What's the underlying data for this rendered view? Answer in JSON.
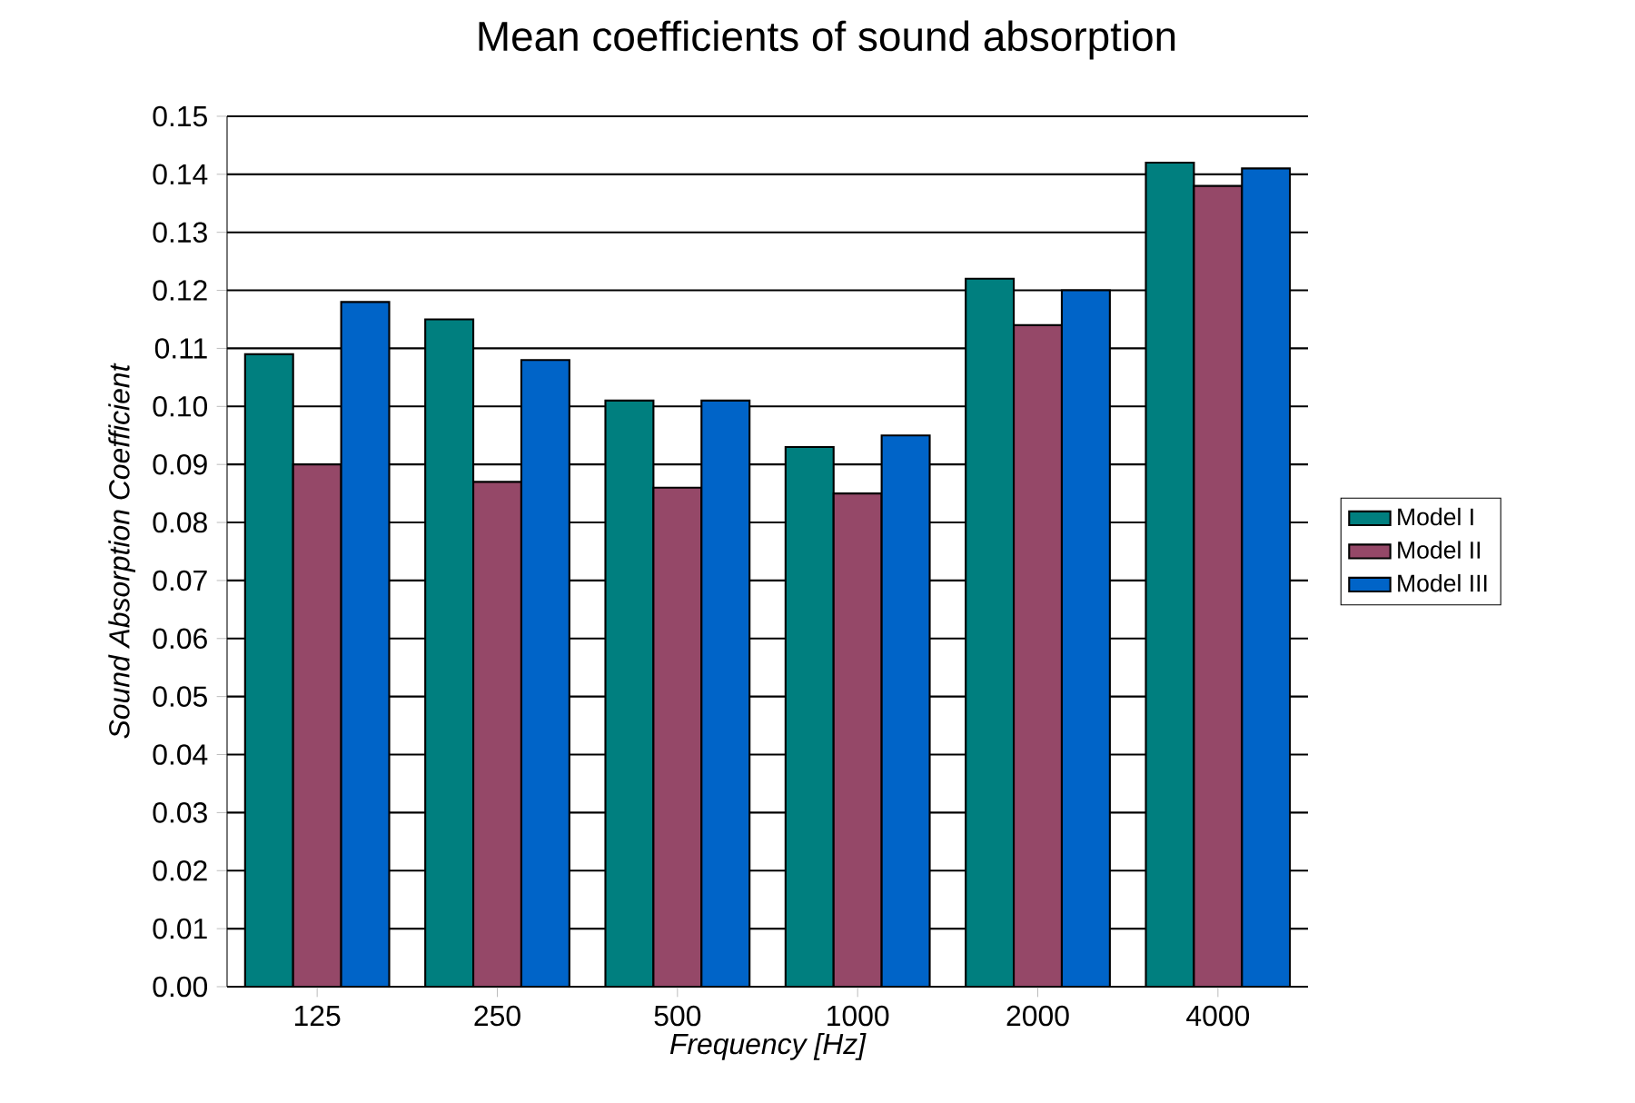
{
  "chart_data": {
    "type": "bar",
    "title": "Mean coefficients of sound absorption",
    "xlabel": "Frequency [Hz]",
    "ylabel": "Sound Absorption Coefficient",
    "categories": [
      "125",
      "250",
      "500",
      "1000",
      "2000",
      "4000"
    ],
    "series": [
      {
        "name": "Model   I",
        "color": "#007f7f",
        "values": [
          0.109,
          0.115,
          0.101,
          0.093,
          0.122,
          0.142
        ]
      },
      {
        "name": "Model   II",
        "color": "#954868",
        "values": [
          0.09,
          0.087,
          0.086,
          0.085,
          0.114,
          0.138
        ]
      },
      {
        "name": "Model   III",
        "color": "#0064c8",
        "values": [
          0.118,
          0.108,
          0.101,
          0.095,
          0.12,
          0.141
        ]
      }
    ],
    "ylim": [
      0,
      0.15
    ],
    "yticks": [
      {
        "value": 0,
        "label": "0.00"
      },
      0.01,
      0.02,
      0.03,
      0.04,
      0.05,
      0.06,
      0.07,
      0.08,
      0.09,
      {
        "value": 0.1,
        "label": "0.10"
      },
      0.11,
      0.12,
      0.13,
      0.14,
      0.15
    ],
    "grid": "y",
    "legend": "right"
  }
}
